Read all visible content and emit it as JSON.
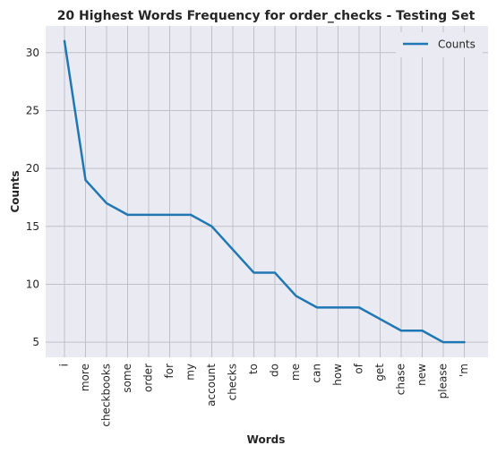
{
  "chart_data": {
    "type": "line",
    "title": "20 Highest Words Frequency for order_checks - Testing Set",
    "xlabel": "Words",
    "ylabel": "Counts",
    "categories": [
      "i",
      "more",
      "checkbooks",
      "some",
      "order",
      "for",
      "my",
      "account",
      "checks",
      "to",
      "do",
      "me",
      "can",
      "how",
      "of",
      "get",
      "chase",
      "new",
      "please",
      "'m"
    ],
    "series": [
      {
        "name": "Counts",
        "values": [
          31,
          19,
          17,
          16,
          16,
          16,
          16,
          15,
          13,
          11,
          11,
          9,
          8,
          8,
          8,
          7,
          6,
          6,
          5,
          5
        ],
        "color": "#1f77b4"
      }
    ],
    "yticks": [
      5,
      10,
      15,
      20,
      25,
      30
    ],
    "ylim": [
      3.7,
      32.3
    ],
    "grid": true,
    "legend_position": "top-right",
    "colors": {
      "background": "#eaeaf2",
      "grid": "#c0c0c8",
      "text": "#262626"
    }
  }
}
